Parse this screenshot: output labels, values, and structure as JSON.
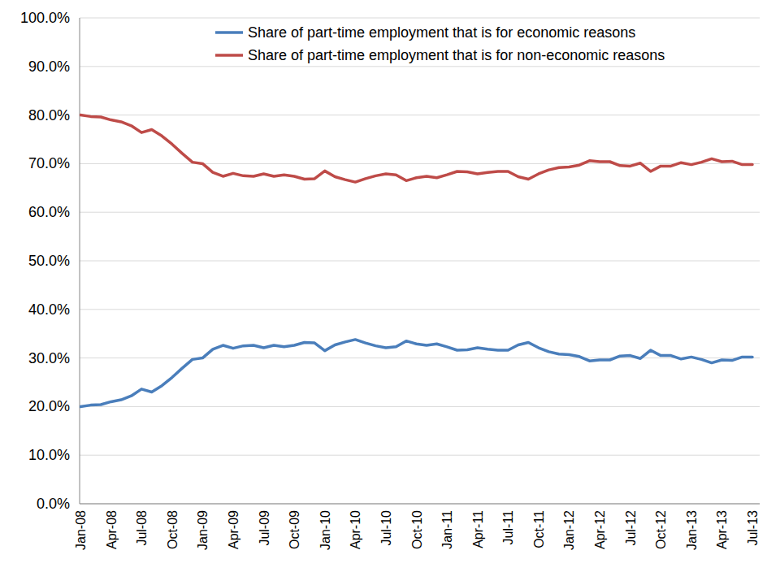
{
  "chart_data": {
    "type": "line",
    "categories": [
      "Jan-08",
      null,
      null,
      "Apr-08",
      null,
      null,
      "Jul-08",
      null,
      null,
      "Oct-08",
      null,
      null,
      "Jan-09",
      null,
      null,
      "Apr-09",
      null,
      null,
      "Jul-09",
      null,
      null,
      "Oct-09",
      null,
      null,
      "Jan-10",
      null,
      null,
      "Apr-10",
      null,
      null,
      "Jul-10",
      null,
      null,
      "Oct-10",
      null,
      null,
      "Jan-11",
      null,
      null,
      "Apr-11",
      null,
      null,
      "Jul-11",
      null,
      null,
      "Oct-11",
      null,
      null,
      "Jan-12",
      null,
      null,
      "Apr-12",
      null,
      null,
      "Jul-12",
      null,
      null,
      "Oct-12",
      null,
      null,
      "Jan-13",
      null,
      null,
      "Apr-13",
      null,
      null,
      "Jul-13"
    ],
    "series": [
      {
        "name": "Share of part-time employment that is for economic reasons",
        "color": "#4a7ebb",
        "values": [
          20.0,
          20.3,
          20.4,
          21.0,
          21.4,
          22.2,
          23.6,
          23.0,
          24.3,
          26.0,
          27.9,
          29.7,
          30.0,
          31.8,
          32.6,
          32.0,
          32.5,
          32.6,
          32.1,
          32.6,
          32.3,
          32.6,
          33.2,
          33.1,
          31.5,
          32.7,
          33.3,
          33.8,
          33.1,
          32.5,
          32.1,
          32.3,
          33.5,
          32.9,
          32.6,
          32.9,
          32.3,
          31.6,
          31.7,
          32.1,
          31.8,
          31.6,
          31.6,
          32.7,
          33.2,
          32.1,
          31.3,
          30.8,
          30.7,
          30.3,
          29.4,
          29.6,
          29.6,
          30.4,
          30.5,
          29.9,
          31.6,
          30.5,
          30.5,
          29.8,
          30.2,
          29.7,
          29.0,
          29.6,
          29.5,
          30.2,
          30.2
        ]
      },
      {
        "name": "Share of part-time employment that is for non-economic reasons",
        "color": "#be4b48",
        "values": [
          80.0,
          79.7,
          79.6,
          79.0,
          78.6,
          77.8,
          76.4,
          77.0,
          75.7,
          74.0,
          72.1,
          70.3,
          70.0,
          68.2,
          67.4,
          68.0,
          67.5,
          67.4,
          67.9,
          67.4,
          67.7,
          67.4,
          66.8,
          66.9,
          68.5,
          67.3,
          66.7,
          66.2,
          66.9,
          67.5,
          67.9,
          67.7,
          66.5,
          67.1,
          67.4,
          67.1,
          67.7,
          68.4,
          68.3,
          67.9,
          68.2,
          68.4,
          68.4,
          67.3,
          66.8,
          67.9,
          68.7,
          69.2,
          69.3,
          69.7,
          70.6,
          70.4,
          70.4,
          69.6,
          69.5,
          70.1,
          68.4,
          69.5,
          69.5,
          70.2,
          69.8,
          70.3,
          71.0,
          70.4,
          70.5,
          69.8,
          69.8
        ]
      }
    ],
    "ylim": [
      0,
      100
    ],
    "yticks": [
      {
        "value": 0,
        "label": "0.0%"
      },
      {
        "value": 10,
        "label": "10.0%"
      },
      {
        "value": 20,
        "label": "20.0%"
      },
      {
        "value": 30,
        "label": "30.0%"
      },
      {
        "value": 40,
        "label": "40.0%"
      },
      {
        "value": 50,
        "label": "50.0%"
      },
      {
        "value": 60,
        "label": "60.0%"
      },
      {
        "value": 70,
        "label": "70.0%"
      },
      {
        "value": 80,
        "label": "80.0%"
      },
      {
        "value": 90,
        "label": "90.0%"
      },
      {
        "value": 100,
        "label": "100.0%"
      }
    ],
    "grid": true,
    "legend": "top-right"
  }
}
